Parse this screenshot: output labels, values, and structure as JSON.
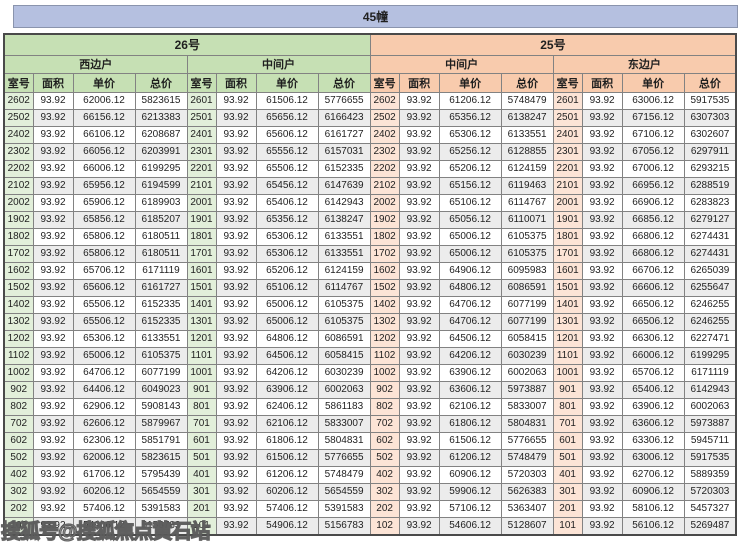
{
  "title": "45幢",
  "watermark": "搜狐号@搜狐焦点黄石站",
  "columns": [
    "室号",
    "面积",
    "单价",
    "总价"
  ],
  "colors": {
    "blue": "#b5c0e0",
    "green": "#c6e0b4",
    "greenlight": "#e2efda",
    "orange": "#f8cbad",
    "orangelight": "#fce4d6",
    "stripe": "#ececec",
    "border": "#828282",
    "text": "#1f1f1f"
  },
  "groups": [
    {
      "building": "26号",
      "sections": [
        {
          "name": "西边户",
          "rows": [
            [
              "2602",
              "93.92",
              "62006.12",
              "5823615"
            ],
            [
              "2502",
              "93.92",
              "66156.12",
              "6213383"
            ],
            [
              "2402",
              "93.92",
              "66106.12",
              "6208687"
            ],
            [
              "2302",
              "93.92",
              "66056.12",
              "6203991"
            ],
            [
              "2202",
              "93.92",
              "66006.12",
              "6199295"
            ],
            [
              "2102",
              "93.92",
              "65956.12",
              "6194599"
            ],
            [
              "2002",
              "93.92",
              "65906.12",
              "6189903"
            ],
            [
              "1902",
              "93.92",
              "65856.12",
              "6185207"
            ],
            [
              "1802",
              "93.92",
              "65806.12",
              "6180511"
            ],
            [
              "1702",
              "93.92",
              "65806.12",
              "6180511"
            ],
            [
              "1602",
              "93.92",
              "65706.12",
              "6171119"
            ],
            [
              "1502",
              "93.92",
              "65606.12",
              "6161727"
            ],
            [
              "1402",
              "93.92",
              "65506.12",
              "6152335"
            ],
            [
              "1302",
              "93.92",
              "65506.12",
              "6152335"
            ],
            [
              "1202",
              "93.92",
              "65306.12",
              "6133551"
            ],
            [
              "1102",
              "93.92",
              "65006.12",
              "6105375"
            ],
            [
              "1002",
              "93.92",
              "64706.12",
              "6077199"
            ],
            [
              "902",
              "93.92",
              "64406.12",
              "6049023"
            ],
            [
              "802",
              "93.92",
              "62906.12",
              "5908143"
            ],
            [
              "702",
              "93.92",
              "62606.12",
              "5879967"
            ],
            [
              "602",
              "93.92",
              "62306.12",
              "5851791"
            ],
            [
              "502",
              "93.92",
              "62006.12",
              "5823615"
            ],
            [
              "402",
              "93.92",
              "61706.12",
              "5795439"
            ],
            [
              "302",
              "93.92",
              "60206.12",
              "5654559"
            ],
            [
              "202",
              "93.92",
              "57406.12",
              "5391583"
            ],
            [
              "102",
              "93.92",
              "54906.12",
              "5156783"
            ]
          ]
        },
        {
          "name": "中间户",
          "rows": [
            [
              "2601",
              "93.92",
              "61506.12",
              "5776655"
            ],
            [
              "2501",
              "93.92",
              "65656.12",
              "6166423"
            ],
            [
              "2401",
              "93.92",
              "65606.12",
              "6161727"
            ],
            [
              "2301",
              "93.92",
              "65556.12",
              "6157031"
            ],
            [
              "2201",
              "93.92",
              "65506.12",
              "6152335"
            ],
            [
              "2101",
              "93.92",
              "65456.12",
              "6147639"
            ],
            [
              "2001",
              "93.92",
              "65406.12",
              "6142943"
            ],
            [
              "1901",
              "93.92",
              "65356.12",
              "6138247"
            ],
            [
              "1801",
              "93.92",
              "65306.12",
              "6133551"
            ],
            [
              "1701",
              "93.92",
              "65306.12",
              "6133551"
            ],
            [
              "1601",
              "93.92",
              "65206.12",
              "6124159"
            ],
            [
              "1501",
              "93.92",
              "65106.12",
              "6114767"
            ],
            [
              "1401",
              "93.92",
              "65006.12",
              "6105375"
            ],
            [
              "1301",
              "93.92",
              "65006.12",
              "6105375"
            ],
            [
              "1201",
              "93.92",
              "64806.12",
              "6086591"
            ],
            [
              "1101",
              "93.92",
              "64506.12",
              "6058415"
            ],
            [
              "1001",
              "93.92",
              "64206.12",
              "6030239"
            ],
            [
              "901",
              "93.92",
              "63906.12",
              "6002063"
            ],
            [
              "801",
              "93.92",
              "62406.12",
              "5861183"
            ],
            [
              "701",
              "93.92",
              "62106.12",
              "5833007"
            ],
            [
              "601",
              "93.92",
              "61806.12",
              "5804831"
            ],
            [
              "501",
              "93.92",
              "61506.12",
              "5776655"
            ],
            [
              "401",
              "93.92",
              "61206.12",
              "5748479"
            ],
            [
              "301",
              "93.92",
              "60206.12",
              "5654559"
            ],
            [
              "201",
              "93.92",
              "57406.12",
              "5391583"
            ],
            [
              "101",
              "93.92",
              "54906.12",
              "5156783"
            ]
          ]
        }
      ]
    },
    {
      "building": "25号",
      "sections": [
        {
          "name": "中间户",
          "rows": [
            [
              "2602",
              "93.92",
              "61206.12",
              "5748479"
            ],
            [
              "2502",
              "93.92",
              "65356.12",
              "6138247"
            ],
            [
              "2402",
              "93.92",
              "65306.12",
              "6133551"
            ],
            [
              "2302",
              "93.92",
              "65256.12",
              "6128855"
            ],
            [
              "2202",
              "93.92",
              "65206.12",
              "6124159"
            ],
            [
              "2102",
              "93.92",
              "65156.12",
              "6119463"
            ],
            [
              "2002",
              "93.92",
              "65106.12",
              "6114767"
            ],
            [
              "1902",
              "93.92",
              "65056.12",
              "6110071"
            ],
            [
              "1802",
              "93.92",
              "65006.12",
              "6105375"
            ],
            [
              "1702",
              "93.92",
              "65006.12",
              "6105375"
            ],
            [
              "1602",
              "93.92",
              "64906.12",
              "6095983"
            ],
            [
              "1502",
              "93.92",
              "64806.12",
              "6086591"
            ],
            [
              "1402",
              "93.92",
              "64706.12",
              "6077199"
            ],
            [
              "1302",
              "93.92",
              "64706.12",
              "6077199"
            ],
            [
              "1202",
              "93.92",
              "64506.12",
              "6058415"
            ],
            [
              "1102",
              "93.92",
              "64206.12",
              "6030239"
            ],
            [
              "1002",
              "93.92",
              "63906.12",
              "6002063"
            ],
            [
              "902",
              "93.92",
              "63606.12",
              "5973887"
            ],
            [
              "802",
              "93.92",
              "62106.12",
              "5833007"
            ],
            [
              "702",
              "93.92",
              "61806.12",
              "5804831"
            ],
            [
              "602",
              "93.92",
              "61506.12",
              "5776655"
            ],
            [
              "502",
              "93.92",
              "61206.12",
              "5748479"
            ],
            [
              "402",
              "93.92",
              "60906.12",
              "5720303"
            ],
            [
              "302",
              "93.92",
              "59906.12",
              "5626383"
            ],
            [
              "202",
              "93.92",
              "57106.12",
              "5363407"
            ],
            [
              "102",
              "93.92",
              "54606.12",
              "5128607"
            ]
          ]
        },
        {
          "name": "东边户",
          "rows": [
            [
              "2601",
              "93.92",
              "63006.12",
              "5917535"
            ],
            [
              "2501",
              "93.92",
              "67156.12",
              "6307303"
            ],
            [
              "2401",
              "93.92",
              "67106.12",
              "6302607"
            ],
            [
              "2301",
              "93.92",
              "67056.12",
              "6297911"
            ],
            [
              "2201",
              "93.92",
              "67006.12",
              "6293215"
            ],
            [
              "2101",
              "93.92",
              "66956.12",
              "6288519"
            ],
            [
              "2001",
              "93.92",
              "66906.12",
              "6283823"
            ],
            [
              "1901",
              "93.92",
              "66856.12",
              "6279127"
            ],
            [
              "1801",
              "93.92",
              "66806.12",
              "6274431"
            ],
            [
              "1701",
              "93.92",
              "66806.12",
              "6274431"
            ],
            [
              "1601",
              "93.92",
              "66706.12",
              "6265039"
            ],
            [
              "1501",
              "93.92",
              "66606.12",
              "6255647"
            ],
            [
              "1401",
              "93.92",
              "66506.12",
              "6246255"
            ],
            [
              "1301",
              "93.92",
              "66506.12",
              "6246255"
            ],
            [
              "1201",
              "93.92",
              "66306.12",
              "6227471"
            ],
            [
              "1101",
              "93.92",
              "66006.12",
              "6199295"
            ],
            [
              "1001",
              "93.92",
              "65706.12",
              "6171119"
            ],
            [
              "901",
              "93.92",
              "65406.12",
              "6142943"
            ],
            [
              "801",
              "93.92",
              "63906.12",
              "6002063"
            ],
            [
              "701",
              "93.92",
              "63606.12",
              "5973887"
            ],
            [
              "601",
              "93.92",
              "63306.12",
              "5945711"
            ],
            [
              "501",
              "93.92",
              "63006.12",
              "5917535"
            ],
            [
              "401",
              "93.92",
              "62706.12",
              "5889359"
            ],
            [
              "301",
              "93.92",
              "60906.12",
              "5720303"
            ],
            [
              "201",
              "93.92",
              "58106.12",
              "5457327"
            ],
            [
              "101",
              "93.92",
              "56106.12",
              "5269487"
            ]
          ]
        }
      ]
    }
  ]
}
